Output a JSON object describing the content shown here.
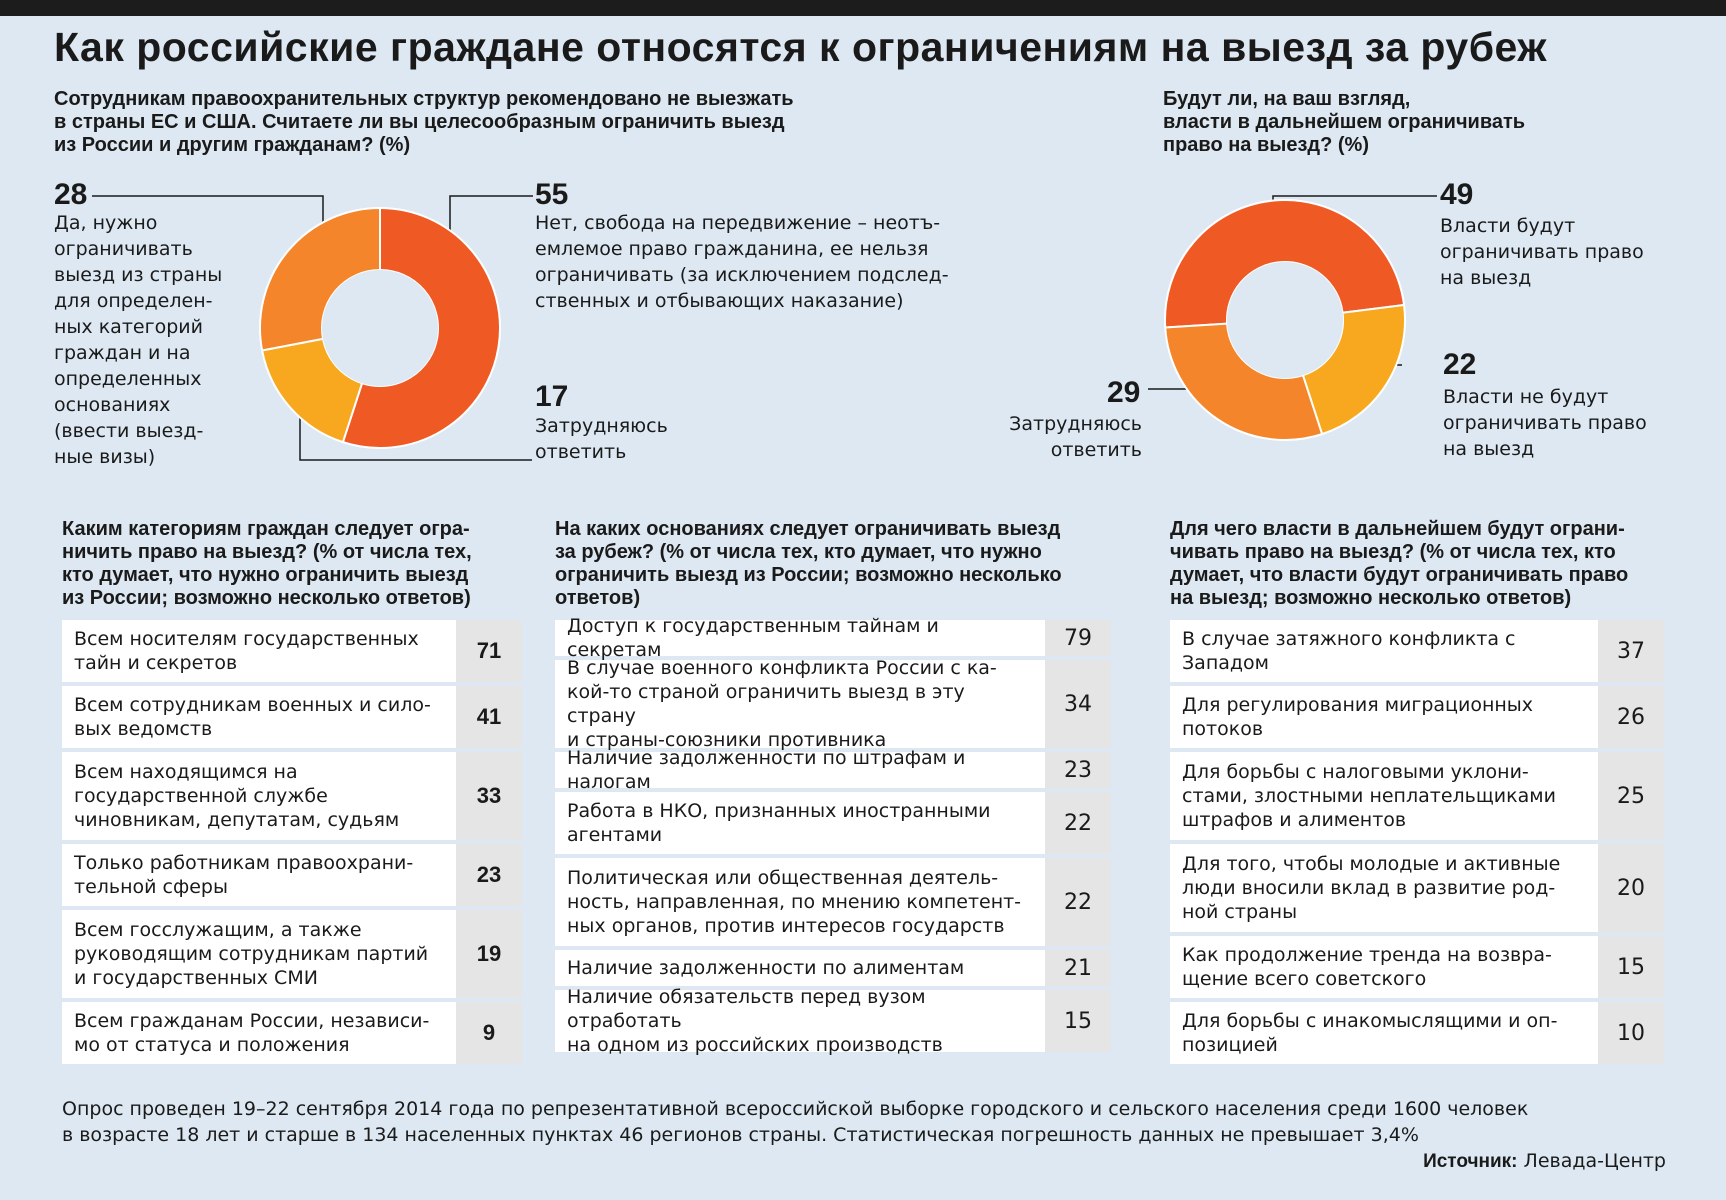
{
  "title": "Как российские граждане относятся к ограничениям на выезд за рубеж",
  "colors": {
    "dark_orange": "#ef5a24",
    "mid_orange": "#f4852a",
    "light_orange": "#f7a81f",
    "background": "#dde8f2"
  },
  "chart_data": [
    {
      "type": "pie",
      "title": "Сотрудникам правоохранительных структур рекомендовано не выезжать в страны ЕС и США. Считаете ли вы целесообразным ограничить выезд из России и другим гражданам? (%)",
      "slices": [
        {
          "value": 28,
          "label": "Да, нужно ограничивать выезд из страны для определенных категорий граждан и на определенных основаниях (ввести выездные визы)",
          "color": "#f4852a"
        },
        {
          "value": 55,
          "label": "Нет, свобода на передвижение – неотъемлемое право гражданина, ее нельзя ограничивать (за исключением подследственных и отбывающих наказание)",
          "color": "#ef5a24"
        },
        {
          "value": 17,
          "label": "Затрудняюсь ответить",
          "color": "#f7a81f"
        }
      ]
    },
    {
      "type": "pie",
      "title": "Будут ли, на ваш взгляд, власти в дальнейшем ограничивать право на выезд? (%)",
      "slices": [
        {
          "value": 49,
          "label": "Власти будут ограничивать право на выезд",
          "color": "#ef5a24"
        },
        {
          "value": 22,
          "label": "Власти не будут ограничивать право на выезд",
          "color": "#f7a81f"
        },
        {
          "value": 29,
          "label": "Затрудняюсь ответить",
          "color": "#f4852a"
        }
      ]
    },
    {
      "type": "table",
      "title": "Каким категориям граждан следует ограничить право на выезд? (% от числа тех, кто думает, что нужно ограничить выезд из России; возможно несколько ответов)",
      "rows": [
        {
          "label": "Всем носителям государственных тайн и секретов",
          "value": 71
        },
        {
          "label": "Всем сотрудникам военных и силовых ведомств",
          "value": 41
        },
        {
          "label": "Всем находящимся на государственной службе чиновникам, депутатам, судьям",
          "value": 33
        },
        {
          "label": "Только работникам правоохранительной сферы",
          "value": 23
        },
        {
          "label": "Всем госслужащим, а также руководящим сотрудникам партий и государственных СМИ",
          "value": 19
        },
        {
          "label": "Всем гражданам России, независимо от статуса и положения",
          "value": 9
        }
      ]
    },
    {
      "type": "table",
      "title": "На каких основаниях следует ограничивать выезд за рубеж? (% от числа тех, кто думает, что нужно ограничить выезд из России; возможно несколько ответов)",
      "rows": [
        {
          "label": "Доступ к государственным тайнам и секретам",
          "value": 79
        },
        {
          "label": "В случае военного конфликта России с какой-то страной ограничить выезд в эту страну и страны-союзники противника",
          "value": 34
        },
        {
          "label": "Наличие задолженности по штрафам и налогам",
          "value": 23
        },
        {
          "label": "Работа в НКО, признанных иностранными агентами",
          "value": 22
        },
        {
          "label": "Политическая или общественная деятельность, направленная, по мнению компетентных органов, против интересов государств",
          "value": 22
        },
        {
          "label": "Наличие задолженности по алиментам",
          "value": 21
        },
        {
          "label": "Наличие обязательств перед вузом отработать на одном из российских производств",
          "value": 15
        }
      ]
    },
    {
      "type": "table",
      "title": "Для чего власти в дальнейшем будут ограничивать право на выезд? (% от числа тех, кто думает, что власти будут ограничивать право на выезд; возможно несколько ответов)",
      "rows": [
        {
          "label": "В случае затяжного конфликта с Западом",
          "value": 37
        },
        {
          "label": "Для регулирования миграционных потоков",
          "value": 26
        },
        {
          "label": "Для борьбы с налоговыми уклонистами, злостными неплательщиками штрафов и алиментов",
          "value": 25
        },
        {
          "label": "Для того, чтобы молодые и активные люди вносили вклад в развитие родной страны",
          "value": 20
        },
        {
          "label": "Как продолжение тренда на возвращение всего советского",
          "value": 15
        },
        {
          "label": "Для борьбы с инакомыслящими и оппозицией",
          "value": 10
        }
      ]
    }
  ],
  "q1": {
    "lines": [
      "Сотрудникам правоохранительных структур рекомендовано не выезжать",
      "в страны ЕС и США. Считаете ли вы целесообразным ограничить выезд",
      "из России и другим гражданам? (%)"
    ],
    "yes_num": "28",
    "yes_lines": [
      "Да, нужно",
      "ограничивать",
      "выезд из страны",
      "для определен-",
      "ных категорий",
      "граждан и на",
      "определенных",
      "основаниях",
      "(ввести выезд-",
      "ные визы)"
    ],
    "no_num": "55",
    "no_lines": [
      "Нет, свобода на передвижение – неотъ-",
      "емлемое право гражданина, ее нельзя",
      "ограничивать (за исключением подслед-",
      "ственных и отбывающих наказание)"
    ],
    "dk_num": "17",
    "dk_lines": [
      "Затрудняюсь",
      "ответить"
    ]
  },
  "q2": {
    "lines": [
      "Будут ли, на ваш взгляд,",
      "власти в дальнейшем ограничивать",
      "право на выезд? (%)"
    ],
    "will_num": "49",
    "will_lines": [
      "Власти будут",
      "ограничивать право",
      "на выезд"
    ],
    "wont_num": "22",
    "wont_lines": [
      "Власти не будут",
      "ограничивать право",
      "на выезд"
    ],
    "dk_num": "29",
    "dk_lines": [
      "Затрудняюсь",
      "ответить"
    ]
  },
  "t1": {
    "lines": [
      "Каким категориям граждан следует огра-",
      "ничить право на выезд? (% от числа тех,",
      "кто думает, что нужно ограничить выезд",
      "из России; возможно несколько ответов)"
    ],
    "rows": [
      {
        "lines": [
          "Всем носителям государственных",
          "тайн и секретов"
        ],
        "value": "71"
      },
      {
        "lines": [
          "Всем сотрудникам военных и сило-",
          "вых ведомств"
        ],
        "value": "41"
      },
      {
        "lines": [
          "Всем находящимся на",
          "государственной службе",
          "чиновникам, депутатам, судьям"
        ],
        "value": "33"
      },
      {
        "lines": [
          "Только работникам правоохрани-",
          "тельной сферы"
        ],
        "value": "23"
      },
      {
        "lines": [
          "Всем госслужащим, а также",
          "руководящим сотрудникам партий",
          "и государственных СМИ"
        ],
        "value": "19"
      },
      {
        "lines": [
          "Всем гражданам России, независи-",
          "мо от статуса и положения"
        ],
        "value": "9"
      }
    ]
  },
  "t2": {
    "lines": [
      "На каких основаниях следует ограничивать выезд",
      "за рубеж? (% от числа тех, кто думает, что нужно",
      "ограничить выезд из России; возможно несколько",
      "ответов)"
    ],
    "rows": [
      {
        "lines": [
          "Доступ к государственным тайнам и секретам"
        ],
        "value": "79"
      },
      {
        "lines": [
          "В случае военного конфликта России с ка-",
          "кой-то страной ограничить выезд в эту страну",
          "и страны-союзники противника"
        ],
        "value": "34"
      },
      {
        "lines": [
          "Наличие задолженности по штрафам и налогам"
        ],
        "value": "23"
      },
      {
        "lines": [
          "Работа в НКО, признанных иностранными",
          "агентами"
        ],
        "value": "22"
      },
      {
        "lines": [
          "Политическая или общественная деятель-",
          "ность, направленная, по мнению компетент-",
          "ных органов, против интересов государств"
        ],
        "value": "22"
      },
      {
        "lines": [
          "Наличие задолженности по алиментам"
        ],
        "value": "21"
      },
      {
        "lines": [
          "Наличие обязательств перед вузом отработать",
          "на одном из российских производств"
        ],
        "value": "15"
      }
    ]
  },
  "t3": {
    "lines": [
      "Для чего власти в дальнейшем будут ограни-",
      "чивать право на выезд? (% от числа тех, кто",
      "думает, что власти будут ограничивать право",
      "на выезд; возможно несколько ответов)"
    ],
    "rows": [
      {
        "lines": [
          "В случае затяжного конфликта с",
          "Западом"
        ],
        "value": "37"
      },
      {
        "lines": [
          "Для регулирования миграционных",
          "потоков"
        ],
        "value": "26"
      },
      {
        "lines": [
          "Для борьбы с налоговыми уклони-",
          "стами, злостными неплательщиками",
          "штрафов и алиментов"
        ],
        "value": "25"
      },
      {
        "lines": [
          "Для того, чтобы молодые и активные",
          "люди вносили вклад в развитие род-",
          "ной страны"
        ],
        "value": "20"
      },
      {
        "lines": [
          "Как продолжение тренда на возвра-",
          "щение всего советского"
        ],
        "value": "15"
      },
      {
        "lines": [
          "Для борьбы с инакомыслящими и оп-",
          "позицией"
        ],
        "value": "10"
      }
    ]
  },
  "footnote_lines": [
    "Опрос проведен 19–22 сентября 2014 года по репрезентативной всероссийской выборке городского и сельского населения среди 1600 человек",
    "в возрасте 18 лет и старше в 134 населенных пунктах 46 регионов страны. Статистическая погрешность данных не превышает 3,4%"
  ],
  "source_label": "Источник:",
  "source_value": "Левада-Центр"
}
